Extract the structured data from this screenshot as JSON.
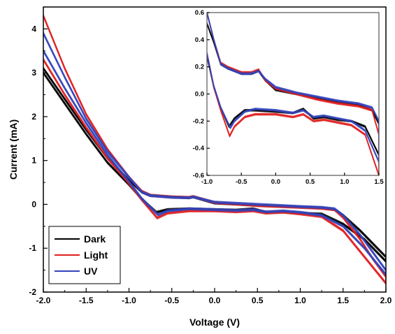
{
  "chart_data": [
    {
      "type": "line",
      "xlabel": "Voltage (V)",
      "ylabel": "Current (mA)",
      "xlim": [
        -2.0,
        2.0
      ],
      "ylim": [
        -2,
        4.5
      ],
      "xticks": [
        -2.0,
        -1.5,
        -1.0,
        -0.5,
        0.0,
        0.5,
        1.0,
        1.5,
        2.0
      ],
      "xtick_labels": [
        "-2.0",
        "-1.5",
        "-1.0",
        "-0.5",
        "0.0",
        "0.5",
        "1.0",
        "1.5",
        "2.0"
      ],
      "yticks": [
        -2,
        -1,
        0,
        1,
        2,
        3,
        4
      ],
      "ytick_labels": [
        "-2",
        "-1",
        "0",
        "1",
        "2",
        "3",
        "4"
      ],
      "legend_position": "bottom-left",
      "series": [
        {
          "name": "Dark",
          "color": "#000000",
          "upper": [
            [
              -2.0,
              3.1
            ],
            [
              -1.75,
              2.4
            ],
            [
              -1.5,
              1.7
            ],
            [
              -1.25,
              1.05
            ],
            [
              -1.0,
              0.55
            ],
            [
              -0.85,
              0.28
            ],
            [
              -0.75,
              0.2
            ],
            [
              -0.5,
              0.17
            ],
            [
              -0.3,
              0.15
            ],
            [
              -0.25,
              0.17
            ],
            [
              0.0,
              0.03
            ],
            [
              0.5,
              -0.02
            ],
            [
              1.0,
              -0.06
            ],
            [
              1.25,
              -0.08
            ],
            [
              1.4,
              -0.12
            ],
            [
              1.5,
              -0.25
            ],
            [
              1.7,
              -0.6
            ],
            [
              1.85,
              -0.9
            ],
            [
              2.0,
              -1.2
            ]
          ],
          "lower": [
            [
              -2.0,
              3.0
            ],
            [
              -1.75,
              2.3
            ],
            [
              -1.5,
              1.6
            ],
            [
              -1.25,
              0.95
            ],
            [
              -1.0,
              0.45
            ],
            [
              -0.85,
              0.12
            ],
            [
              -0.68,
              -0.18
            ],
            [
              -0.55,
              -0.12
            ],
            [
              -0.3,
              -0.1
            ],
            [
              0.0,
              -0.12
            ],
            [
              0.25,
              -0.13
            ],
            [
              0.45,
              -0.1
            ],
            [
              0.6,
              -0.18
            ],
            [
              0.8,
              -0.17
            ],
            [
              1.0,
              -0.2
            ],
            [
              1.25,
              -0.22
            ],
            [
              1.5,
              -0.45
            ],
            [
              1.75,
              -0.8
            ],
            [
              2.0,
              -1.3
            ]
          ]
        },
        {
          "name": "Light",
          "color": "#e02020",
          "upper": [
            [
              -2.0,
              4.3
            ],
            [
              -1.75,
              3.1
            ],
            [
              -1.5,
              2.05
            ],
            [
              -1.25,
              1.25
            ],
            [
              -1.0,
              0.62
            ],
            [
              -0.85,
              0.3
            ],
            [
              -0.75,
              0.21
            ],
            [
              -0.5,
              0.17
            ],
            [
              -0.3,
              0.16
            ],
            [
              -0.25,
              0.18
            ],
            [
              0.0,
              0.04
            ],
            [
              0.5,
              -0.03
            ],
            [
              1.0,
              -0.07
            ],
            [
              1.25,
              -0.09
            ],
            [
              1.4,
              -0.12
            ],
            [
              1.5,
              -0.3
            ],
            [
              1.7,
              -0.8
            ],
            [
              1.85,
              -1.25
            ],
            [
              2.0,
              -1.65
            ]
          ],
          "lower": [
            [
              -2.0,
              3.3
            ],
            [
              -1.75,
              2.5
            ],
            [
              -1.5,
              1.75
            ],
            [
              -1.25,
              1.05
            ],
            [
              -1.0,
              0.48
            ],
            [
              -0.85,
              0.1
            ],
            [
              -0.67,
              -0.31
            ],
            [
              -0.55,
              -0.2
            ],
            [
              -0.3,
              -0.15
            ],
            [
              0.0,
              -0.15
            ],
            [
              0.25,
              -0.17
            ],
            [
              0.45,
              -0.15
            ],
            [
              0.6,
              -0.2
            ],
            [
              0.8,
              -0.18
            ],
            [
              1.0,
              -0.22
            ],
            [
              1.25,
              -0.28
            ],
            [
              1.5,
              -0.6
            ],
            [
              1.75,
              -1.2
            ],
            [
              2.0,
              -1.8
            ]
          ]
        },
        {
          "name": "UV",
          "color": "#3344bb",
          "upper": [
            [
              -2.0,
              3.9
            ],
            [
              -1.75,
              2.9
            ],
            [
              -1.5,
              1.95
            ],
            [
              -1.25,
              1.2
            ],
            [
              -1.0,
              0.62
            ],
            [
              -0.85,
              0.28
            ],
            [
              -0.75,
              0.2
            ],
            [
              -0.5,
              0.16
            ],
            [
              -0.3,
              0.15
            ],
            [
              -0.25,
              0.17
            ],
            [
              0.0,
              0.05
            ],
            [
              0.5,
              0.0
            ],
            [
              1.0,
              -0.05
            ],
            [
              1.25,
              -0.07
            ],
            [
              1.4,
              -0.1
            ],
            [
              1.5,
              -0.25
            ],
            [
              1.7,
              -0.7
            ],
            [
              1.85,
              -1.1
            ],
            [
              2.0,
              -1.5
            ]
          ],
          "lower": [
            [
              -2.0,
              3.5
            ],
            [
              -1.75,
              2.65
            ],
            [
              -1.5,
              1.85
            ],
            [
              -1.25,
              1.12
            ],
            [
              -1.0,
              0.52
            ],
            [
              -0.85,
              0.13
            ],
            [
              -0.66,
              -0.24
            ],
            [
              -0.55,
              -0.15
            ],
            [
              -0.3,
              -0.1
            ],
            [
              0.0,
              -0.12
            ],
            [
              0.25,
              -0.14
            ],
            [
              0.45,
              -0.12
            ],
            [
              0.6,
              -0.17
            ],
            [
              0.8,
              -0.15
            ],
            [
              1.0,
              -0.18
            ],
            [
              1.25,
              -0.25
            ],
            [
              1.5,
              -0.5
            ],
            [
              1.75,
              -1.0
            ],
            [
              2.0,
              -1.6
            ]
          ]
        }
      ]
    },
    {
      "type": "line",
      "inset": true,
      "xlim": [
        -1.0,
        1.5
      ],
      "ylim": [
        -0.6,
        0.6
      ],
      "xticks": [
        -1.0,
        -0.5,
        0.0,
        0.5,
        1.0,
        1.5
      ],
      "xtick_labels": [
        "-1.0",
        "-0.5",
        "0.0",
        "0.5",
        "1.0",
        "1.5"
      ],
      "yticks": [
        -0.6,
        -0.4,
        -0.2,
        0.0,
        0.2,
        0.4,
        0.6
      ],
      "ytick_labels": [
        "-0.6",
        "-0.4",
        "-0.2",
        "0.0",
        "0.2",
        "0.4",
        "0.6"
      ],
      "series": [
        {
          "name": "Dark",
          "color": "#000000",
          "upper": [
            [
              -1.0,
              0.52
            ],
            [
              -0.9,
              0.38
            ],
            [
              -0.8,
              0.22
            ],
            [
              -0.7,
              0.19
            ],
            [
              -0.5,
              0.15
            ],
            [
              -0.35,
              0.15
            ],
            [
              -0.25,
              0.17
            ],
            [
              -0.15,
              0.1
            ],
            [
              0.0,
              0.03
            ],
            [
              0.3,
              0.0
            ],
            [
              0.6,
              -0.03
            ],
            [
              0.9,
              -0.06
            ],
            [
              1.2,
              -0.08
            ],
            [
              1.4,
              -0.12
            ],
            [
              1.5,
              -0.22
            ]
          ],
          "lower": [
            [
              -1.0,
              0.28
            ],
            [
              -0.9,
              0.05
            ],
            [
              -0.8,
              -0.1
            ],
            [
              -0.68,
              -0.24
            ],
            [
              -0.6,
              -0.18
            ],
            [
              -0.45,
              -0.12
            ],
            [
              -0.3,
              -0.12
            ],
            [
              0.0,
              -0.13
            ],
            [
              0.25,
              -0.14
            ],
            [
              0.4,
              -0.11
            ],
            [
              0.55,
              -0.18
            ],
            [
              0.7,
              -0.17
            ],
            [
              0.9,
              -0.19
            ],
            [
              1.1,
              -0.2
            ],
            [
              1.3,
              -0.24
            ],
            [
              1.5,
              -0.45
            ]
          ]
        },
        {
          "name": "Light",
          "color": "#e02020",
          "upper": [
            [
              -1.0,
              0.6
            ],
            [
              -0.9,
              0.4
            ],
            [
              -0.8,
              0.23
            ],
            [
              -0.7,
              0.2
            ],
            [
              -0.5,
              0.16
            ],
            [
              -0.35,
              0.16
            ],
            [
              -0.25,
              0.18
            ],
            [
              -0.15,
              0.1
            ],
            [
              0.0,
              0.04
            ],
            [
              0.3,
              0.0
            ],
            [
              0.6,
              -0.04
            ],
            [
              0.9,
              -0.07
            ],
            [
              1.2,
              -0.09
            ],
            [
              1.4,
              -0.12
            ],
            [
              1.5,
              -0.3
            ]
          ],
          "lower": [
            [
              -1.0,
              0.3
            ],
            [
              -0.9,
              0.05
            ],
            [
              -0.8,
              -0.12
            ],
            [
              -0.67,
              -0.31
            ],
            [
              -0.6,
              -0.24
            ],
            [
              -0.45,
              -0.17
            ],
            [
              -0.3,
              -0.15
            ],
            [
              0.0,
              -0.15
            ],
            [
              0.25,
              -0.17
            ],
            [
              0.4,
              -0.15
            ],
            [
              0.55,
              -0.2
            ],
            [
              0.7,
              -0.19
            ],
            [
              0.9,
              -0.21
            ],
            [
              1.1,
              -0.23
            ],
            [
              1.3,
              -0.3
            ],
            [
              1.5,
              -0.6
            ]
          ]
        },
        {
          "name": "UV",
          "color": "#3344bb",
          "upper": [
            [
              -1.0,
              0.6
            ],
            [
              -0.9,
              0.4
            ],
            [
              -0.8,
              0.22
            ],
            [
              -0.7,
              0.19
            ],
            [
              -0.5,
              0.15
            ],
            [
              -0.35,
              0.15
            ],
            [
              -0.25,
              0.17
            ],
            [
              -0.15,
              0.11
            ],
            [
              0.0,
              0.05
            ],
            [
              0.3,
              0.01
            ],
            [
              0.6,
              -0.02
            ],
            [
              0.9,
              -0.05
            ],
            [
              1.2,
              -0.07
            ],
            [
              1.4,
              -0.1
            ],
            [
              1.5,
              -0.2
            ]
          ],
          "lower": [
            [
              -1.0,
              0.3
            ],
            [
              -0.9,
              0.06
            ],
            [
              -0.8,
              -0.1
            ],
            [
              -0.66,
              -0.25
            ],
            [
              -0.6,
              -0.2
            ],
            [
              -0.45,
              -0.13
            ],
            [
              -0.3,
              -0.11
            ],
            [
              0.0,
              -0.12
            ],
            [
              0.25,
              -0.14
            ],
            [
              0.4,
              -0.12
            ],
            [
              0.55,
              -0.17
            ],
            [
              0.7,
              -0.16
            ],
            [
              0.9,
              -0.18
            ],
            [
              1.1,
              -0.2
            ],
            [
              1.3,
              -0.27
            ],
            [
              1.5,
              -0.5
            ]
          ]
        }
      ]
    }
  ]
}
